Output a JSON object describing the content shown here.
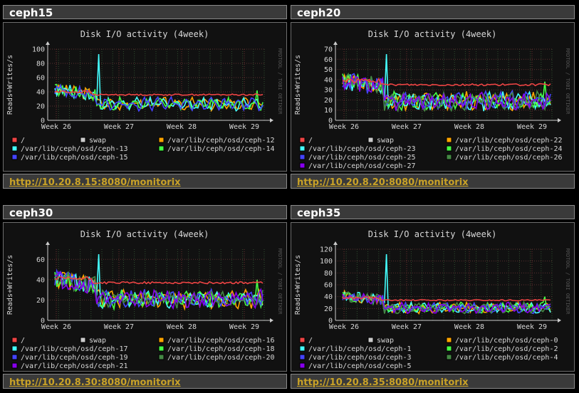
{
  "panels": [
    {
      "host": "ceph15",
      "title": "Disk I/O activity  (4week)",
      "ylabel": "Reads+Writes/s",
      "watermark": "RRDTOOL / TOBI OETIKER",
      "url": "http://10.20.8.15:8080/monitorix",
      "ymax": 100,
      "yticks": [
        0,
        20,
        40,
        60,
        80,
        100
      ],
      "xticks": [
        "Week 26",
        "Week 27",
        "Week 28",
        "Week 29"
      ],
      "legend": [
        {
          "label": "/",
          "color": "#ee4444"
        },
        {
          "label": "swap",
          "color": "#cccccc"
        },
        {
          "label": "/var/lib/ceph/osd/ceph-12",
          "color": "#ffa500"
        },
        {
          "label": "/var/lib/ceph/osd/ceph-13",
          "color": "#44ffff"
        },
        {
          "label": "/var/lib/ceph/osd/ceph-14",
          "color": "#44ff44"
        },
        {
          "label": "/var/lib/ceph/osd/ceph-15",
          "color": "#4444ff"
        }
      ]
    },
    {
      "host": "ceph20",
      "title": "Disk I/O activity  (4week)",
      "ylabel": "Reads+Writes/s",
      "watermark": "RRDTOOL / TOBI OETIKER",
      "url": "http://10.20.8.20:8080/monitorix",
      "ymax": 70,
      "yticks": [
        0,
        10,
        20,
        30,
        40,
        50,
        60,
        70
      ],
      "xticks": [
        "Week 26",
        "Week 27",
        "Week 28",
        "Week 29"
      ],
      "legend": [
        {
          "label": "/",
          "color": "#ee4444"
        },
        {
          "label": "swap",
          "color": "#cccccc"
        },
        {
          "label": "/var/lib/ceph/osd/ceph-22",
          "color": "#ffa500"
        },
        {
          "label": "/var/lib/ceph/osd/ceph-23",
          "color": "#44ffff"
        },
        {
          "label": "/var/lib/ceph/osd/ceph-24",
          "color": "#44ff44"
        },
        {
          "label": "/var/lib/ceph/osd/ceph-25",
          "color": "#4444ff"
        },
        {
          "label": "/var/lib/ceph/osd/ceph-26",
          "color": "#448844"
        },
        {
          "label": "/var/lib/ceph/osd/ceph-27",
          "color": "#8800ee"
        }
      ]
    },
    {
      "host": "ceph30",
      "title": "Disk I/O activity  (4week)",
      "ylabel": "Reads+Writes/s",
      "watermark": "RRDTOOL / TOBI OETIKER",
      "url": "http://10.20.8.30:8080/monitorix",
      "ymax": 70,
      "yticks": [
        0,
        20,
        40,
        60
      ],
      "xticks": [
        "Week 26",
        "Week 27",
        "Week 28",
        "Week 29"
      ],
      "legend": [
        {
          "label": "/",
          "color": "#ee4444"
        },
        {
          "label": "swap",
          "color": "#cccccc"
        },
        {
          "label": "/var/lib/ceph/osd/ceph-16",
          "color": "#ffa500"
        },
        {
          "label": "/var/lib/ceph/osd/ceph-17",
          "color": "#44ffff"
        },
        {
          "label": "/var/lib/ceph/osd/ceph-18",
          "color": "#44ff44"
        },
        {
          "label": "/var/lib/ceph/osd/ceph-19",
          "color": "#4444ff"
        },
        {
          "label": "/var/lib/ceph/osd/ceph-20",
          "color": "#448844"
        },
        {
          "label": "/var/lib/ceph/osd/ceph-21",
          "color": "#8800ee"
        }
      ]
    },
    {
      "host": "ceph35",
      "title": "Disk I/O activity  (4week)",
      "ylabel": "Reads+Writes/s",
      "watermark": "RRDTOOL / TOBI OETIKER",
      "url": "http://10.20.8.35:8080/monitorix",
      "ymax": 120,
      "yticks": [
        0,
        20,
        40,
        60,
        80,
        100,
        120
      ],
      "xticks": [
        "Week 26",
        "Week 27",
        "Week 28",
        "Week 29"
      ],
      "legend": [
        {
          "label": "/",
          "color": "#ee4444"
        },
        {
          "label": "swap",
          "color": "#cccccc"
        },
        {
          "label": "/var/lib/ceph/osd/ceph-0",
          "color": "#ffa500"
        },
        {
          "label": "/var/lib/ceph/osd/ceph-1",
          "color": "#44ffff"
        },
        {
          "label": "/var/lib/ceph/osd/ceph-2",
          "color": "#44ff44"
        },
        {
          "label": "/var/lib/ceph/osd/ceph-3",
          "color": "#4444ff"
        },
        {
          "label": "/var/lib/ceph/osd/ceph-4",
          "color": "#448844"
        },
        {
          "label": "/var/lib/ceph/osd/ceph-5",
          "color": "#8800ee"
        }
      ]
    }
  ]
}
